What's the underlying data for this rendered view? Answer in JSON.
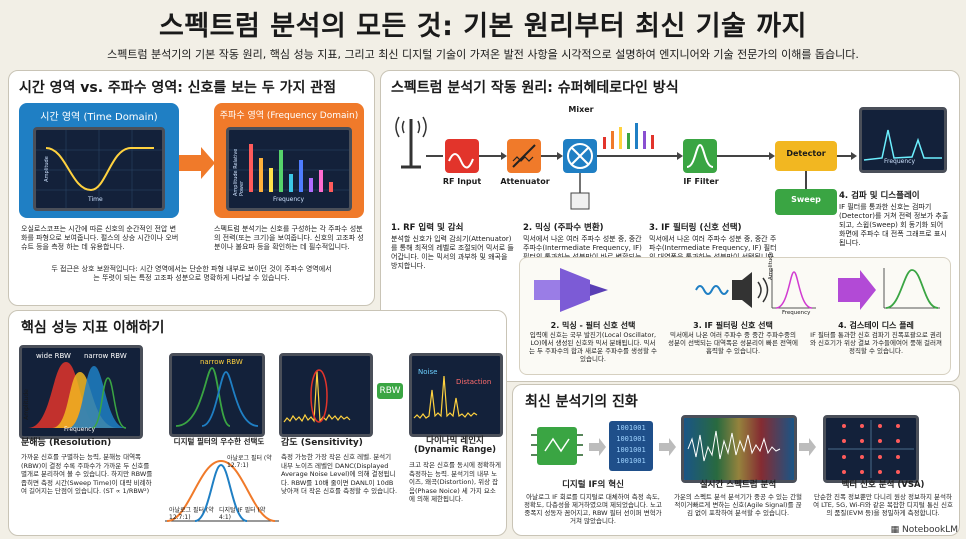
{
  "header": {
    "title": "스펙트럼 분석의 모든 것: 기본 원리부터 최신 기술 까지",
    "subtitle": "스펙트럼 분석기의 기본 작동 원리, 핵심 성능 지표, 그리고 최신 디지털 기술이 가져온 발전 사항을 시각적으로 설명하여 엔지니어와 기술 전문가의 이해를 돕습니다."
  },
  "domain_panel": {
    "title": "시간 영역 vs. 주파수 영역: 신호를 보는 두 가지 관점",
    "time_label": "시간 영역 (Time Domain)",
    "freq_label": "주파수 영역 (Frequency Domain)",
    "time_axis_x": "Time",
    "time_axis_y": "Amplitude",
    "freq_axis_x": "Frequency",
    "freq_axis_y": "Amplitude Relative Power",
    "time_desc": "오실로스코프는 시간에 따른 신호의 순간적인 전압 변화를 파형으로 보여줍니다. 펄스의 상승 시간이나 오버슈트 등을 측정 하는 데 유용합니다.",
    "freq_desc": "스펙트럼 분석기는 신호를 구성하는 각 주파수 성분의 전력(또는 크기)을 보여줍니다. 신호의 고조파 성분이나 불요파 등을 확인하는 데 필수적입니다.",
    "bottom_desc": "두 접근은 상호 보완적입니다: 시간 영역에서는 단순한 파형 내부로 보이던 것이 주파수 영역에서는 뚜렷이 되는 특정 고조파 성분으로 명확하게 나타날 수 있습니다."
  },
  "principle_panel": {
    "title": "스펙트럼 분석기 작동 원리: 슈퍼헤테로다인 방식",
    "blocks": {
      "mixer": "Mixer",
      "rf_input": "RF Input",
      "attenuator": "Attenuator",
      "if_filter": "IF Filter",
      "detector": "Detector",
      "sweep": "Sweep",
      "screen_axis": "Frequency"
    },
    "steps": [
      {
        "title": "1. RF 입력 및 감쇠",
        "desc": "분석할 신호가 입력 감쇠기(Attenuator)를 통해 최적의 레벨로 조절되어 믹서로 들어갑니다. 이는 믹서의 과부하 및 왜곡을 방지합니다."
      },
      {
        "title": "2. 믹싱 (주파수 변환)",
        "desc": "믹서에서 나온 여러 주파수 성분 중, 중간 주파수(Intermediate Frequency, IF) 필터의 통과하는 성분만이 바로 변환되는 대역폭 만환입니다."
      },
      {
        "title": "3. IF 필터링 (신호 선택)",
        "desc": "믹서에서 나온 여러 주파수 성분 중, 중간 주파수(Intermediate Frequency, IF) 필터의 대역폭을 통과하는 성분만이 선택됩니다. 이 IF 필터의 대역폭이 바로 분해능 대역폭(RBW)입니다."
      },
      {
        "title": "4. 검파 및 디스플레이",
        "desc": "IF 필터를 통과한 신호는 검파기(Detector)를 거쳐 전력 정보가 추출되고, 스윕(Sweep) 회 동기화 되어 화면에 주파수 대 전폭 그래프로 표시됩니다."
      }
    ],
    "sub_steps": [
      {
        "title": "2. 믹싱 - 필터 신호 선택",
        "desc": "입력에 신호는 국부 발진기(Local Oscillator, LO)에서 생성된 신호와 믹서 분배됩니다. 믹서는 두 주파수의 합과 새로운 주파수를 생성할 수 있습니다."
      },
      {
        "title": "3. IF 필터링 신호 선택",
        "desc": "믹서에서 나온 여러 주파수 중 중간 주파수중의 성분이 선택되는 대역폭은 성분리이 빠른 전역에 흡력할 수 있습니다."
      },
      {
        "title": "4. 검스테이 디스 플레",
        "desc": "IF 필터를 통과한 신호 검파기 진폭포괄으로 권리와 신호기가 위상 결보 가수들에여어 풍해 걸러져 정직할 수 있습니다."
      }
    ],
    "sub_axis_x": "Frequency",
    "sub_axis_y": "Amplitude"
  },
  "metrics_panel": {
    "title": "핵심 성능 지표 이해하기",
    "wide_rbw": "wide RBW",
    "narrow_rbw": "narrow RBW",
    "narrow_rbw2": "narrow RBW",
    "axis_freq": "Frequency",
    "axis_amp": "Amplitude",
    "rbw_box": "RBW",
    "noise": "Noise",
    "distortion": "Distaction",
    "resolution_title": "분해능 (Resolution)",
    "resolution_desc": "가까운 신호를 구별하는 능력, 분해능 대역폭(RBW)이 결정 수록 주파수가 가까운 두 신호를 별개로 분리하여 볼 수 있습니다. 하지만 RBW를 좁히면 측정 시간(Sweep Time)이 대략 비례하여 길어지는 단점이 있습니다. (ST ∝ 1/RBW²)",
    "filter_title": "디지털 필터의 우수한 선택도",
    "filter_analog": "아날로그 필터 (약 12.7:1)",
    "filter_analog2": "아날로그 필터 (약 12.7:1)",
    "filter_digital": "디지털 IF 필터 (약 4:1)",
    "sensitivity_title": "감도 (Sensitivity)",
    "sensitivity_desc": "측정 가능한 가장 작은 신호 레벨. 분석기 내부 노이즈 레벨인 DANC(Displayed Average Noise Level)에 의해 결정됩니다. RBW를 10배 줄이면 DANL이 10dB 낮아져 더 작은 신호를 측정할 수 있습니다.",
    "dynamic_title": "다이나믹 레인지 (Dynamic Range)",
    "dynamic_desc": "크고 작은 신호를 동시에 정확하게 측정하는 능력. 분석기의 내부 노이즈, 왜곡(Distortion), 위상 잡음(Phase Noice) 세 가지 요소에 의해 제한됩니다."
  },
  "evolution_panel": {
    "title": "최신 분석기의 진화",
    "binary": [
      "1001001",
      "1001001",
      "1001001",
      "1001001"
    ],
    "digital_if_title": "디지털 IF의 혁신",
    "digital_if_desc": "아날로그 IF 회로를 디지털로 대체하여 측정 속도, 정확도, 다층성을 제거하였으며 제되었습니다. 노고 중폭지 성동자 꼼어지고, RBW 필터 선이퍼 변혁가 거쳐 많았습니다.",
    "realtime_title": "실시간 스펙트럼 분석",
    "realtime_desc": "가운의 스펙트 분석 분석기가 중공 수 있는 간헐적이거빠르게 변하는 신호(Agile Signal)를 끊김 없이 포착하여 분석할 수 있습니다.",
    "vsa_title": "벡터 신호 분석 (VSA)",
    "vsa_desc": "단순한 진폭 정보뿐만 다니리 원상 정보하지 분석하여 LTE, 5G, Wi-Fi와 같은 복잡한 디지털 통신 신호의 품질(EVM 등)을 정밀하게 측정합니다."
  },
  "brand": "NotebookLM",
  "colors": {
    "blue": "#1f7fc4",
    "orange": "#f07a2a",
    "green": "#3aa543",
    "red": "#e2342b"
  }
}
